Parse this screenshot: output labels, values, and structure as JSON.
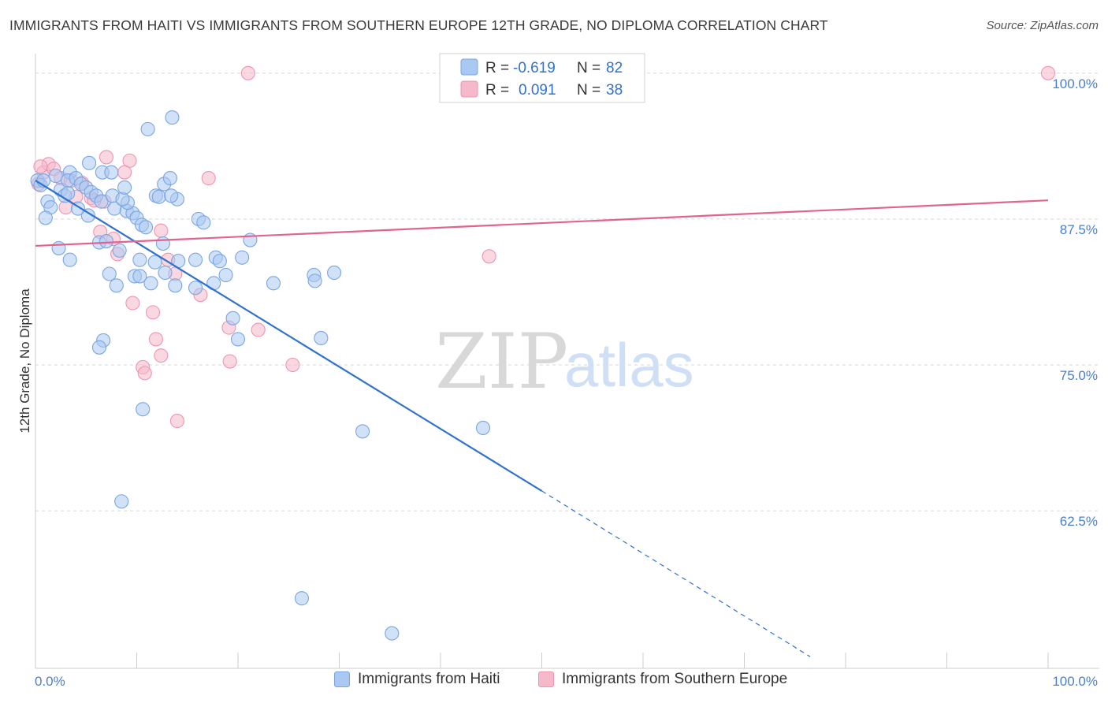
{
  "title": "IMMIGRANTS FROM HAITI VS IMMIGRANTS FROM SOUTHERN EUROPE 12TH GRADE, NO DIPLOMA CORRELATION CHART",
  "source": "Source: ZipAtlas.com",
  "watermark": {
    "zip": "ZIP",
    "atlas": "atlas"
  },
  "colors": {
    "blue_fill": "#a9c8f2",
    "blue_stroke": "#7aa6e3",
    "blue_line": "#2f72d0",
    "pink_fill": "#f6b8cb",
    "pink_stroke": "#ee95b0",
    "pink_line": "#e0648f",
    "tick_text": "#4a7fd1",
    "grid": "#d7d7d7"
  },
  "legend": {
    "rows": [
      {
        "r_label": "R =",
        "r_value": "-0.619",
        "n_label": "N =",
        "n_value": "82"
      },
      {
        "r_label": "R =",
        "r_value": "0.091",
        "n_label": "N =",
        "n_value": "38"
      }
    ]
  },
  "bottom_legend": [
    "Immigrants from Haiti",
    "Immigrants from Southern Europe"
  ],
  "chart_data": {
    "type": "scatter",
    "title": "IMMIGRANTS FROM HAITI VS IMMIGRANTS FROM SOUTHERN EUROPE 12TH GRADE, NO DIPLOMA CORRELATION CHART",
    "xlabel": "",
    "ylabel": "12th Grade, No Diploma",
    "xlim": [
      0,
      100
    ],
    "ylim": [
      49,
      101
    ],
    "x_tick_labels": [
      "0.0%",
      "100.0%"
    ],
    "y_ticks": [
      62.5,
      75.0,
      87.5,
      100.0
    ],
    "y_tick_labels": [
      "62.5%",
      "75.0%",
      "87.5%",
      "100.0%"
    ],
    "grid": true,
    "legend_position": "top-center",
    "series": [
      {
        "name": "Immigrants from Haiti",
        "r": -0.619,
        "n": 82,
        "trend": {
          "x0": 0.0,
          "y0": 90.8,
          "x1": 50.0,
          "y1": 64.2,
          "dash_to_x": 76.5,
          "dash_to_y": 50.0
        },
        "points": [
          [
            0.2,
            90.8
          ],
          [
            0.5,
            90.4
          ],
          [
            0.8,
            90.8
          ],
          [
            1.2,
            89.0
          ],
          [
            1.5,
            88.5
          ],
          [
            2.0,
            91.2
          ],
          [
            2.5,
            90.0
          ],
          [
            2.9,
            89.5
          ],
          [
            3.4,
            91.5
          ],
          [
            3.2,
            90.8
          ],
          [
            4.0,
            91.0
          ],
          [
            4.5,
            90.5
          ],
          [
            5.0,
            90.2
          ],
          [
            5.5,
            89.8
          ],
          [
            6.0,
            89.5
          ],
          [
            6.5,
            89.0
          ],
          [
            5.3,
            92.3
          ],
          [
            6.6,
            91.5
          ],
          [
            7.6,
            89.5
          ],
          [
            1.0,
            87.6
          ],
          [
            5.2,
            87.8
          ],
          [
            7.8,
            88.4
          ],
          [
            9.0,
            88.2
          ],
          [
            9.6,
            88.0
          ],
          [
            9.1,
            88.9
          ],
          [
            10.0,
            87.6
          ],
          [
            10.5,
            87.0
          ],
          [
            8.6,
            89.2
          ],
          [
            7.5,
            91.5
          ],
          [
            8.8,
            90.2
          ],
          [
            11.9,
            89.5
          ],
          [
            12.7,
            90.5
          ],
          [
            13.3,
            91.0
          ],
          [
            12.2,
            89.4
          ],
          [
            14.0,
            89.2
          ],
          [
            13.4,
            89.5
          ],
          [
            16.1,
            87.5
          ],
          [
            16.6,
            87.2
          ],
          [
            10.9,
            86.8
          ],
          [
            10.3,
            84.0
          ],
          [
            11.8,
            83.8
          ],
          [
            12.6,
            85.4
          ],
          [
            14.1,
            83.9
          ],
          [
            15.8,
            84.0
          ],
          [
            17.8,
            84.2
          ],
          [
            18.2,
            83.9
          ],
          [
            20.4,
            84.2
          ],
          [
            21.2,
            85.7
          ],
          [
            2.3,
            85.0
          ],
          [
            3.4,
            84.0
          ],
          [
            6.3,
            85.5
          ],
          [
            7.0,
            85.6
          ],
          [
            8.3,
            84.8
          ],
          [
            7.3,
            82.8
          ],
          [
            9.8,
            82.6
          ],
          [
            10.3,
            82.6
          ],
          [
            11.4,
            82.0
          ],
          [
            12.8,
            82.9
          ],
          [
            13.8,
            81.8
          ],
          [
            15.8,
            81.6
          ],
          [
            17.6,
            82.0
          ],
          [
            18.8,
            82.7
          ],
          [
            23.5,
            82.0
          ],
          [
            27.5,
            82.7
          ],
          [
            27.6,
            82.2
          ],
          [
            29.5,
            82.9
          ],
          [
            8.0,
            81.8
          ],
          [
            19.5,
            79.0
          ],
          [
            20.0,
            77.2
          ],
          [
            28.2,
            77.3
          ],
          [
            6.7,
            77.1
          ],
          [
            6.3,
            76.5
          ],
          [
            10.6,
            71.2
          ],
          [
            32.3,
            69.3
          ],
          [
            44.2,
            69.6
          ],
          [
            8.5,
            63.3
          ],
          [
            13.5,
            96.2
          ],
          [
            11.1,
            95.2
          ],
          [
            26.3,
            55.0
          ],
          [
            35.2,
            52.0
          ],
          [
            3.2,
            89.7
          ],
          [
            4.2,
            88.4
          ]
        ]
      },
      {
        "name": "Immigrants from Southern Europe",
        "r": 0.091,
        "n": 38,
        "trend": {
          "x0": 0.0,
          "y0": 85.2,
          "x1": 100.0,
          "y1": 89.1
        },
        "points": [
          [
            21.0,
            100.0
          ],
          [
            100.0,
            100.0
          ],
          [
            0.3,
            90.5
          ],
          [
            0.8,
            91.5
          ],
          [
            1.3,
            92.2
          ],
          [
            1.8,
            91.8
          ],
          [
            0.5,
            92.0
          ],
          [
            2.5,
            91.0
          ],
          [
            3.5,
            90.8
          ],
          [
            4.6,
            90.6
          ],
          [
            5.5,
            89.3
          ],
          [
            4.0,
            89.4
          ],
          [
            6.8,
            89.0
          ],
          [
            7.0,
            92.8
          ],
          [
            9.3,
            92.5
          ],
          [
            8.8,
            91.5
          ],
          [
            17.1,
            91.0
          ],
          [
            6.4,
            86.4
          ],
          [
            7.7,
            85.8
          ],
          [
            8.1,
            84.5
          ],
          [
            12.4,
            86.5
          ],
          [
            13.1,
            84.0
          ],
          [
            13.8,
            82.8
          ],
          [
            16.3,
            81.0
          ],
          [
            9.6,
            80.3
          ],
          [
            11.6,
            79.5
          ],
          [
            11.9,
            77.2
          ],
          [
            12.4,
            75.8
          ],
          [
            10.6,
            74.8
          ],
          [
            10.8,
            74.3
          ],
          [
            19.1,
            78.2
          ],
          [
            22.0,
            78.0
          ],
          [
            19.2,
            75.3
          ],
          [
            25.4,
            75.0
          ],
          [
            14.0,
            70.2
          ],
          [
            44.8,
            84.3
          ],
          [
            3.0,
            88.5
          ],
          [
            5.8,
            89.1
          ]
        ]
      }
    ]
  }
}
